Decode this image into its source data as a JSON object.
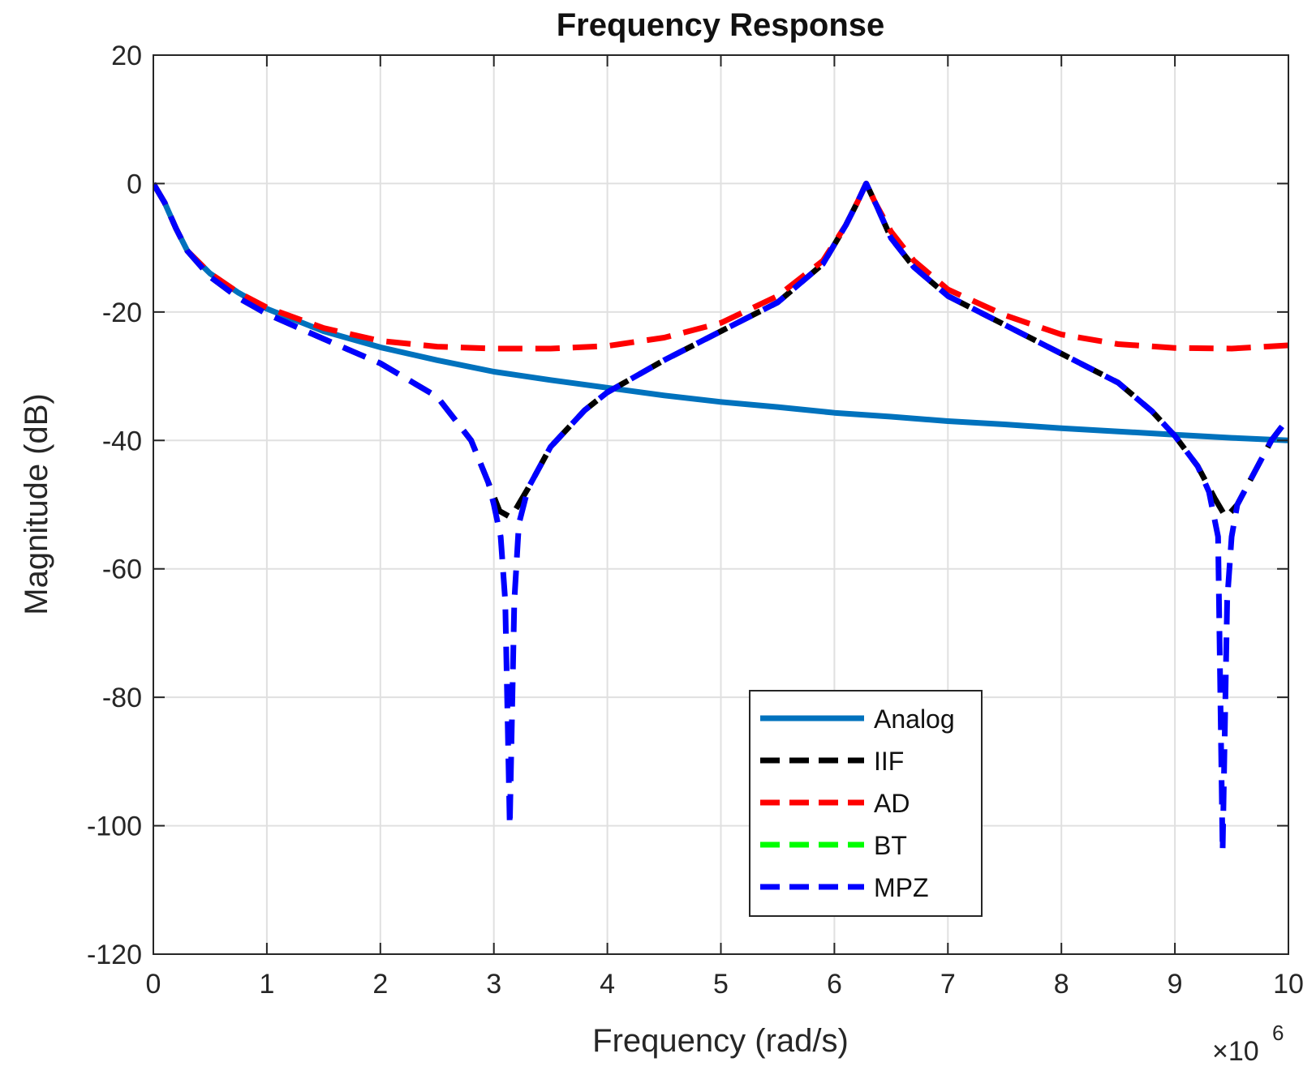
{
  "chart_data": {
    "type": "line",
    "title": "Frequency Response",
    "xlabel": "Frequency (rad/s)",
    "ylabel": "Magnitude (dB)",
    "x_multiplier": {
      "base": "×10",
      "exponent": "6"
    },
    "xlim": [
      0,
      10
    ],
    "ylim": [
      -120,
      20
    ],
    "x_ticks": [
      0,
      1,
      2,
      3,
      4,
      5,
      6,
      7,
      8,
      9,
      10
    ],
    "x_tick_labels": [
      "0",
      "1",
      "2",
      "3",
      "4",
      "5",
      "6",
      "7",
      "8",
      "9",
      "10"
    ],
    "y_ticks": [
      20,
      0,
      -20,
      -40,
      -60,
      -80,
      -100,
      -120
    ],
    "y_tick_labels": [
      "20",
      "0",
      "-20",
      "-40",
      "-60",
      "-80",
      "-100",
      "-120"
    ],
    "grid": true,
    "legend_position": "bottom-center",
    "series": [
      {
        "name": "Analog",
        "color": "#0072bd",
        "dash": "solid",
        "x": [
          0,
          0.1,
          0.2,
          0.3,
          0.5,
          0.75,
          1,
          1.5,
          2,
          2.5,
          3,
          3.5,
          4,
          4.5,
          5,
          5.5,
          6,
          6.5,
          7,
          7.5,
          8,
          8.5,
          9,
          9.5,
          10
        ],
        "y": [
          0,
          -3,
          -7,
          -10.5,
          -14,
          -17,
          -19.5,
          -23,
          -25.5,
          -27.5,
          -29.3,
          -30.6,
          -31.8,
          -33,
          -34,
          -34.8,
          -35.7,
          -36.3,
          -37,
          -37.5,
          -38.1,
          -38.6,
          -39.1,
          -39.6,
          -40
        ]
      },
      {
        "name": "IIF",
        "color": "#000000",
        "dash": "dashed",
        "x": [
          0,
          0.1,
          0.2,
          0.3,
          0.5,
          0.75,
          1,
          1.5,
          2,
          2.5,
          2.8,
          2.95,
          3.05,
          3.15,
          3.3,
          3.5,
          3.8,
          4,
          4.5,
          5,
          5.5,
          5.9,
          6.1,
          6.2,
          6.28,
          6.36,
          6.5,
          6.7,
          7,
          7.5,
          8,
          8.5,
          8.8,
          9,
          9.2,
          9.35,
          9.45,
          9.55,
          9.7,
          9.85,
          10
        ],
        "y": [
          0,
          -3,
          -7,
          -10.5,
          -14.5,
          -17.8,
          -20.3,
          -24.2,
          -28,
          -33.2,
          -40,
          -46.5,
          -51,
          -52,
          -47.5,
          -41,
          -35.3,
          -32.5,
          -27.5,
          -23,
          -18.5,
          -12.5,
          -6.5,
          -3,
          0,
          -3,
          -8.5,
          -13,
          -17.5,
          -22,
          -26.5,
          -31,
          -35.5,
          -39.3,
          -44,
          -49,
          -52,
          -50,
          -45,
          -40,
          -36.5
        ]
      },
      {
        "name": "AD",
        "color": "#ff0000",
        "dash": "dashed",
        "x": [
          0,
          0.1,
          0.2,
          0.3,
          0.5,
          0.75,
          1,
          1.5,
          2,
          2.5,
          3,
          3.5,
          4,
          4.5,
          5,
          5.5,
          5.9,
          6.1,
          6.2,
          6.28,
          6.36,
          6.5,
          6.7,
          7,
          7.5,
          8,
          8.5,
          9,
          9.5,
          10
        ],
        "y": [
          0,
          -3,
          -7,
          -10.5,
          -14,
          -17,
          -19.3,
          -22.5,
          -24.5,
          -25.4,
          -25.7,
          -25.7,
          -25.3,
          -24,
          -21.7,
          -17.5,
          -12,
          -6.5,
          -3,
          0,
          -3,
          -7.5,
          -12,
          -16.5,
          -20.5,
          -23.5,
          -25,
          -25.6,
          -25.7,
          -25.2
        ]
      },
      {
        "name": "BT",
        "color": "#00ff00",
        "dash": "dashed",
        "x": [],
        "y": []
      },
      {
        "name": "MPZ",
        "color": "#0000ff",
        "dash": "dashed",
        "x": [
          0,
          0.1,
          0.2,
          0.3,
          0.5,
          0.75,
          1,
          1.5,
          2,
          2.5,
          2.8,
          2.95,
          3.0,
          3.06,
          3.1,
          3.14,
          3.18,
          3.22,
          3.3,
          3.5,
          3.8,
          4,
          4.5,
          5,
          5.5,
          5.9,
          6.1,
          6.2,
          6.28,
          6.36,
          6.5,
          6.7,
          7,
          7.5,
          8,
          8.5,
          8.8,
          9,
          9.2,
          9.3,
          9.38,
          9.42,
          9.46,
          9.5,
          9.55,
          9.7,
          9.85,
          10
        ],
        "y": [
          0,
          -3,
          -7,
          -10.5,
          -14.5,
          -17.8,
          -20.3,
          -24.2,
          -28,
          -33.2,
          -40,
          -46.5,
          -50,
          -55,
          -65,
          -100,
          -65,
          -53,
          -47.5,
          -41,
          -35.3,
          -32.5,
          -27.5,
          -23,
          -18.5,
          -12.5,
          -6.5,
          -3,
          0,
          -3,
          -8.5,
          -13,
          -17.5,
          -22,
          -26.5,
          -31,
          -35.5,
          -39.3,
          -44,
          -48,
          -55,
          -104,
          -65,
          -55,
          -50,
          -45,
          -40,
          -36.5
        ]
      }
    ]
  }
}
